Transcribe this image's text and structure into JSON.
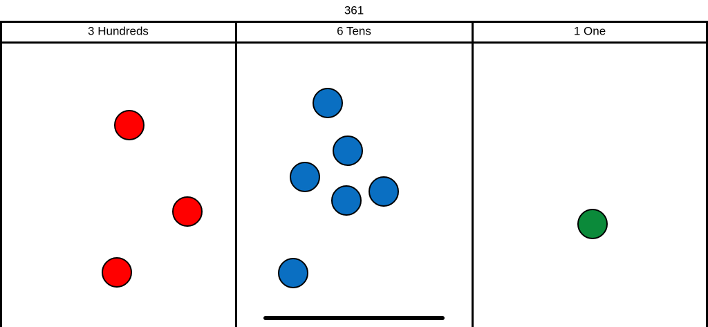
{
  "title": "361",
  "columns": [
    {
      "header": "3 Hundreds"
    },
    {
      "header": "6 Tens"
    },
    {
      "header": "1 One"
    }
  ]
}
